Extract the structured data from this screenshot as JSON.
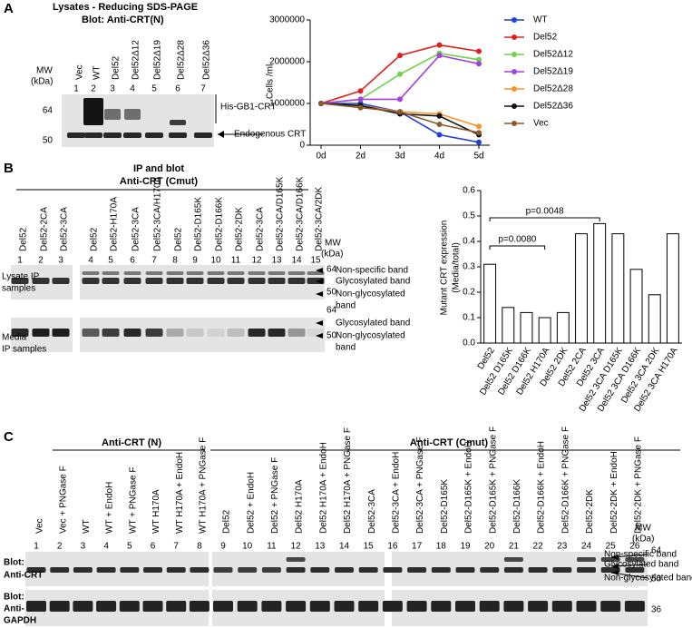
{
  "panels": {
    "a": "A",
    "b": "B",
    "c": "C"
  },
  "panel_a": {
    "title": "Lysates - Reducing SDS-PAGE",
    "subtitle": "Blot: Anti-CRT(N)",
    "mw": "MW",
    "mw_unit": "(kDa)",
    "lanes": [
      "Vec",
      "WT",
      "Del52",
      "Del52Δ12",
      "Del52Δ19",
      "Del52Δ28",
      "Del52Δ36"
    ],
    "lane_numbers": [
      "1",
      "2",
      "3",
      "4",
      "5",
      "6",
      "7"
    ],
    "markers": [
      "64",
      "50"
    ],
    "annotations": [
      "His-GB1-CRT",
      "Endogenous CRT"
    ]
  },
  "chart_data": [
    {
      "type": "line",
      "ylabel": "Cells /ml",
      "categories": [
        "0d",
        "2d",
        "3d",
        "4d",
        "5d"
      ],
      "ylim": [
        0,
        3000000
      ],
      "yticks": [
        0,
        1000000,
        2000000,
        3000000
      ],
      "series": [
        {
          "name": "WT",
          "color": "#1f3fe0",
          "values": [
            1000000,
            1000000,
            800000,
            250000,
            70000
          ]
        },
        {
          "name": "Del52",
          "color": "#e0201f",
          "values": [
            1000000,
            1300000,
            2150000,
            2400000,
            2250000
          ]
        },
        {
          "name": "Del52Δ12",
          "color": "#6fd24a",
          "values": [
            1000000,
            1100000,
            1700000,
            2200000,
            2050000
          ]
        },
        {
          "name": "Del52Δ19",
          "color": "#a43fe0",
          "values": [
            1000000,
            1100000,
            1100000,
            2150000,
            1950000
          ]
        },
        {
          "name": "Del52Δ28",
          "color": "#f5962a",
          "values": [
            1000000,
            950000,
            800000,
            750000,
            450000
          ]
        },
        {
          "name": "Del52Δ36",
          "color": "#111111",
          "values": [
            1000000,
            950000,
            750000,
            700000,
            250000
          ]
        },
        {
          "name": "Vec",
          "color": "#8a5a2b",
          "values": [
            1000000,
            900000,
            800000,
            500000,
            300000
          ]
        }
      ]
    },
    {
      "type": "bar",
      "ylabel": [
        "Mutant CRT expression",
        "(Media/total)"
      ],
      "categories": [
        "Del52",
        "Del52 D165K",
        "Del52 D166K",
        "Del52 H170A",
        "Del52 2DK",
        "Del52 2CA",
        "Del52 3CA",
        "Del52 3CA D165K",
        "Del52 3CA D166K",
        "Del52 3CA 2DK",
        "Del52 3CA H170A"
      ],
      "values": [
        0.31,
        0.14,
        0.12,
        0.1,
        0.12,
        0.43,
        0.47,
        0.43,
        0.29,
        0.19,
        0.43
      ],
      "color": "#ffffff",
      "ylim": [
        0,
        0.6
      ],
      "yticks": [
        {
          "value": 0,
          "label": "0.0"
        },
        {
          "value": 0.1,
          "label": "0.1"
        },
        {
          "value": 0.2,
          "label": "0.2"
        },
        {
          "value": 0.3,
          "label": "0.3"
        },
        {
          "value": 0.4,
          "label": "0.4"
        },
        {
          "value": 0.5,
          "label": "0.5"
        },
        {
          "value": 0.6,
          "label": "0.6"
        }
      ],
      "annotations": [
        "p=0.0048",
        "p=0.0080"
      ]
    }
  ],
  "panel_b": {
    "header": [
      "IP and blot",
      "Anti-CRT (Cmut)"
    ],
    "lanes": [
      "Del52",
      "Del52-2CA",
      "Del52-3CA",
      "Del52",
      "Del52-H170A",
      "Del52-3CA",
      "Del52-3CA/H170A",
      "Del52",
      "Del52-D165K",
      "Del52-D166K",
      "Del52-2DK",
      "Del52-3CA",
      "Del52-3CA/D165K",
      "Del52-3CA/D166K",
      "Del52-3CA/2DK"
    ],
    "lane_numbers": [
      "1",
      "2",
      "3",
      "4",
      "5",
      "6",
      "7",
      "8",
      "9",
      "10",
      "11",
      "12",
      "13",
      "14",
      "15"
    ],
    "rows": [
      [
        "Lysate IP",
        "samples"
      ],
      [
        "Media",
        "IP samples"
      ]
    ],
    "mw": "MW",
    "mw_unit": "(kDa)",
    "markers": [
      "64",
      "50"
    ],
    "lysate_annotations": [
      "Non-specific band",
      "Glycosylated band",
      "Non-glycosylated",
      "band"
    ],
    "media_annotations": [
      "Glycosylated band",
      "Non-glycosylated",
      "band"
    ]
  },
  "panel_c": {
    "headers": [
      "Anti-CRT (N)",
      "Anti-CRT (Cmut)"
    ],
    "lanes": [
      "Vec",
      "Vec + PNGase F",
      "WT",
      "WT + EndoH",
      "WT + PNGase F",
      "WT H170A",
      "WT H170A + EndoH",
      "WT H170A + PNGase F",
      "Del52",
      "Del52 + EndoH",
      "Del52 + PNGase F",
      "Del52 H170A",
      "Del52 H170A + EndoH",
      "Del52 H170A + PNGase F",
      "Del52-3CA",
      "Del52-3CA + EndoH",
      "Del52-3CA + PNGase F",
      "Del52-D165K",
      "Del52-D165K + EndoH",
      "Del52-D165K + PNGase F",
      "Del52-D166K",
      "Del52-D166K + EndoH",
      "Del52-D166K + PNGase F",
      "Del52-2DK",
      "Del52-2DK + EndoH",
      "Del52-2DK + PNGase F"
    ],
    "lane_numbers": [
      "1",
      "2",
      "3",
      "4",
      "5",
      "6",
      "7",
      "8",
      "9",
      "10",
      "11",
      "12",
      "13",
      "14",
      "15",
      "16",
      "17",
      "18",
      "19",
      "20",
      "21",
      "22",
      "23",
      "24",
      "25",
      "26"
    ],
    "rows": [
      [
        "Blot:",
        "Anti-CRT"
      ],
      [
        "Blot:",
        "Anti-",
        "GAPDH"
      ]
    ],
    "mw": "MW",
    "mw_unit": "(kDa)",
    "markers": [
      "64",
      "50",
      "36"
    ],
    "annotations": [
      "Non-specific band",
      "Glycosylated band",
      "Non-glycosylated band"
    ]
  }
}
